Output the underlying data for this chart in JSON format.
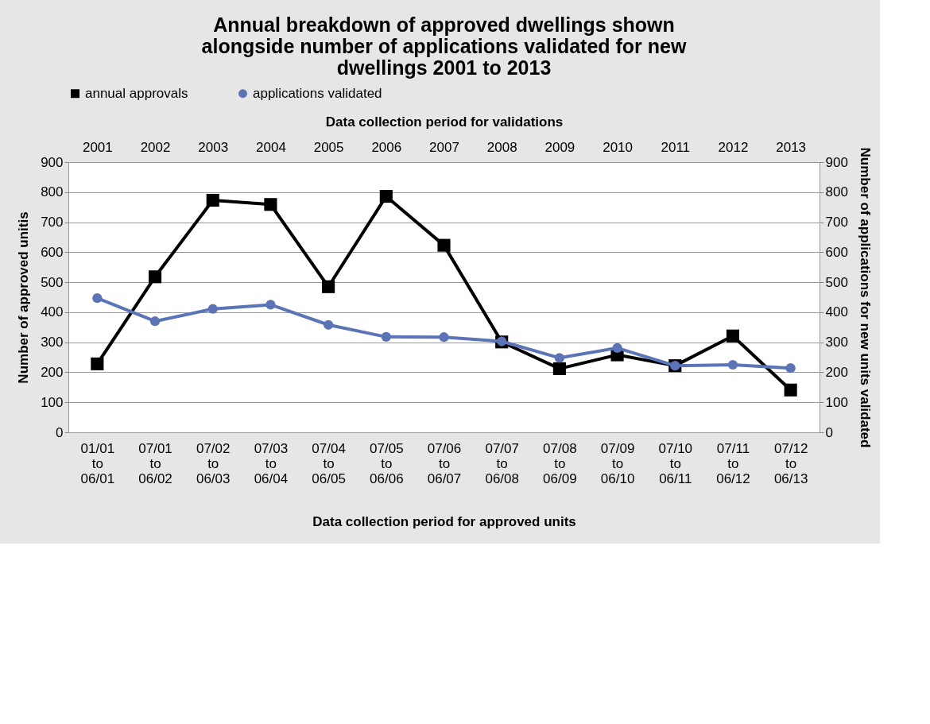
{
  "chart_data": {
    "type": "line",
    "title": "Annual breakdown of approved dwellings shown alongside number of applications validated for new dwellings 2001 to 2013",
    "xlabel": "Data collection period for approved units",
    "x2label": "Data collection period for validations",
    "ylabel": "Number of approved unitis",
    "y2label": "Number of applications for new units validated",
    "categories": [
      "01/01\nto\n06/01",
      "07/01\nto\n06/02",
      "07/02\nto\n06/03",
      "07/03\nto\n06/04",
      "07/04\nto\n06/05",
      "07/05\nto\n06/06",
      "07/06\nto\n06/07",
      "07/07\nto\n06/08",
      "07/08\nto\n06/09",
      "07/09\nto\n06/10",
      "07/10\nto\n06/11",
      "07/11\nto\n06/12",
      "07/12\nto\n06/13"
    ],
    "x2lim": [
      2000.5,
      2013.5
    ],
    "x2ticks": [
      2001,
      2002,
      2003,
      2004,
      2005,
      2006,
      2007,
      2008,
      2009,
      2010,
      2011,
      2012,
      2013
    ],
    "ylim": [
      0,
      900
    ],
    "yticks": [
      0,
      100,
      200,
      300,
      400,
      500,
      600,
      700,
      800,
      900
    ],
    "y2lim": [
      0,
      900
    ],
    "y2ticks": [
      0,
      100,
      200,
      300,
      400,
      500,
      600,
      700,
      800,
      900
    ],
    "series": [
      {
        "name": "annual approvals",
        "color": "#000000",
        "marker": "square",
        "values": [
          228,
          518,
          773,
          759,
          485,
          786,
          623,
          301,
          212,
          258,
          222,
          321,
          141
        ]
      },
      {
        "name": "applications validated",
        "color": "#5b73b7",
        "marker": "circle",
        "axis": "y2",
        "values": [
          447,
          370,
          411,
          425,
          358,
          318,
          317,
          303,
          248,
          281,
          222,
          225,
          214
        ]
      }
    ],
    "grid": "y",
    "legend": "top",
    "line_style": "solid"
  }
}
